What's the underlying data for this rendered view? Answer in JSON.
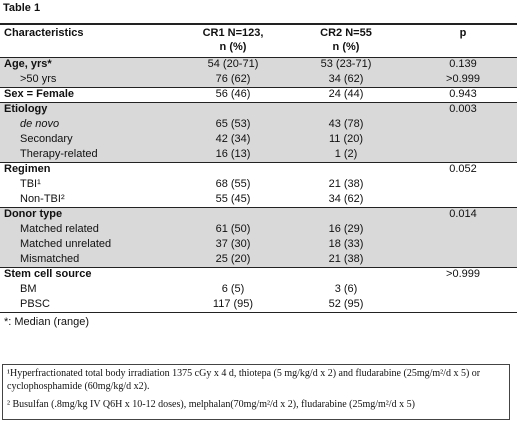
{
  "title": "Table 1",
  "table": {
    "header": [
      [
        "Characteristics"
      ],
      [
        "CR1 N=123,",
        "n (%)"
      ],
      [
        "CR2 N=55",
        "n (%)"
      ],
      [
        "p"
      ]
    ],
    "groups": [
      {
        "rows": [
          {
            "label": "Age, yrs*",
            "cr1": "54 (20-71)",
            "cr2": "53 (23-71)",
            "p": "0.139"
          },
          {
            "label": ">50 yrs",
            "cr1": "76 (62)",
            "cr2": "34 (62)",
            "p": ">0.999"
          }
        ]
      },
      {
        "rows": [
          {
            "label": "Sex = Female",
            "cr1": "56 (46)",
            "cr2": "24 (44)",
            "p": "0.943"
          }
        ]
      },
      {
        "rows": [
          {
            "label": "Etiology",
            "p": "0.003"
          },
          {
            "label": "de novo",
            "cr1": "65 (53)",
            "cr2": "43 (78)"
          },
          {
            "label": "Secondary",
            "cr1": "42 (34)",
            "cr2": "11 (20)"
          },
          {
            "label": "Therapy-related",
            "cr1": "16 (13)",
            "cr2": "1 (2)"
          }
        ]
      },
      {
        "rows": [
          {
            "label": "Regimen",
            "p": "0.052"
          },
          {
            "label": "TBI¹",
            "cr1": "68 (55)",
            "cr2": "21 (38)"
          },
          {
            "label": "Non-TBI²",
            "cr1": "55 (45)",
            "cr2": "34 (62)"
          }
        ]
      },
      {
        "rows": [
          {
            "label": "Donor type",
            "p": "0.014"
          },
          {
            "label": "Matched related",
            "cr1": "61 (50)",
            "cr2": "16 (29)"
          },
          {
            "label": "Matched unrelated",
            "cr1": "37 (30)",
            "cr2": "18 (33)"
          },
          {
            "label": "Mismatched",
            "cr1": "25 (20)",
            "cr2": "21 (38)"
          }
        ]
      },
      {
        "rows": [
          {
            "label": "Stem cell source",
            "p": ">0.999"
          },
          {
            "label": "BM",
            "cr1": "6 (5)",
            "cr2": "3 (6)"
          },
          {
            "label": "PBSC",
            "cr1": "117 (95)",
            "cr2": "52 (95)"
          }
        ]
      }
    ],
    "note": "*: Median (range)"
  },
  "footnotes": [
    "¹Hyperfractionated total body irradiation 1375 cGy x 4 d, thiotepa (5 mg/kg/d x 2) and fludarabine (25mg/m²/d x 5) or cyclophosphamide (60mg/kg/d x2).",
    "² Busulfan (.8mg/kg IV Q6H x 10-12 doses), melphalan(70mg/m²/d x 2), fludarabine (25mg/m²/d x 5)"
  ]
}
